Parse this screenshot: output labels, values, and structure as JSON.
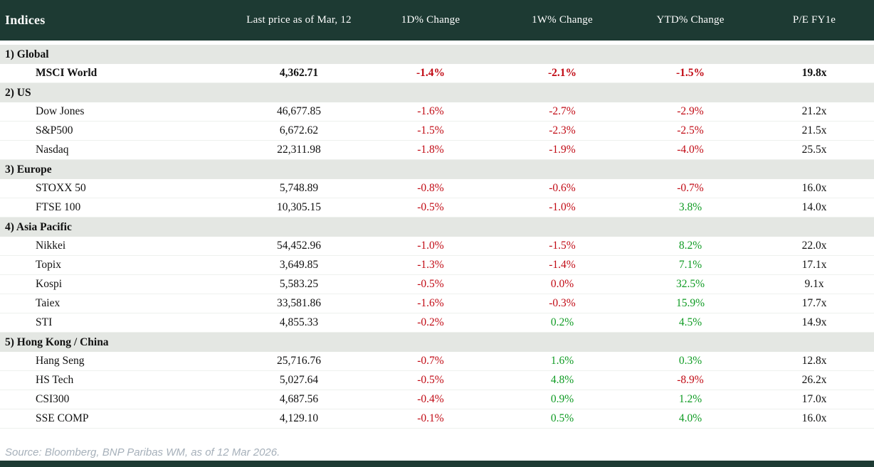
{
  "table": {
    "title": "Indices",
    "columns": [
      "Last price as of Mar, 12",
      "1D% Change",
      "1W% Change",
      "YTD% Change",
      "P/E FY1e"
    ],
    "sections": [
      {
        "label": "1) Global",
        "rows": [
          {
            "name": "MSCI World",
            "price": "4,362.71",
            "d1": "-1.4%",
            "d1_color": "negative",
            "w1": "-2.1%",
            "w1_color": "negative",
            "ytd": "-1.5%",
            "ytd_color": "negative",
            "pe": "19.8x",
            "emphasis": true
          }
        ]
      },
      {
        "label": "2) US",
        "rows": [
          {
            "name": "Dow Jones",
            "price": "46,677.85",
            "d1": "-1.6%",
            "d1_color": "negative",
            "w1": "-2.7%",
            "w1_color": "negative",
            "ytd": "-2.9%",
            "ytd_color": "negative",
            "pe": "21.2x",
            "emphasis": false
          },
          {
            "name": "S&P500",
            "price": "6,672.62",
            "d1": "-1.5%",
            "d1_color": "negative",
            "w1": "-2.3%",
            "w1_color": "negative",
            "ytd": "-2.5%",
            "ytd_color": "negative",
            "pe": "21.5x",
            "emphasis": false
          },
          {
            "name": "Nasdaq",
            "price": "22,311.98",
            "d1": "-1.8%",
            "d1_color": "negative",
            "w1": "-1.9%",
            "w1_color": "negative",
            "ytd": "-4.0%",
            "ytd_color": "negative",
            "pe": "25.5x",
            "emphasis": false
          }
        ]
      },
      {
        "label": "3) Europe",
        "rows": [
          {
            "name": "STOXX 50",
            "price": "5,748.89",
            "d1": "-0.8%",
            "d1_color": "negative",
            "w1": "-0.6%",
            "w1_color": "negative",
            "ytd": "-0.7%",
            "ytd_color": "negative",
            "pe": "16.0x",
            "emphasis": false
          },
          {
            "name": "FTSE 100",
            "price": "10,305.15",
            "d1": "-0.5%",
            "d1_color": "negative",
            "w1": "-1.0%",
            "w1_color": "negative",
            "ytd": "3.8%",
            "ytd_color": "positive",
            "pe": "14.0x",
            "emphasis": false
          }
        ]
      },
      {
        "label": "4) Asia Pacific",
        "rows": [
          {
            "name": "Nikkei",
            "price": "54,452.96",
            "d1": "-1.0%",
            "d1_color": "negative",
            "w1": "-1.5%",
            "w1_color": "negative",
            "ytd": "8.2%",
            "ytd_color": "positive",
            "pe": "22.0x",
            "emphasis": false
          },
          {
            "name": "Topix",
            "price": "3,649.85",
            "d1": "-1.3%",
            "d1_color": "negative",
            "w1": "-1.4%",
            "w1_color": "negative",
            "ytd": "7.1%",
            "ytd_color": "positive",
            "pe": "17.1x",
            "emphasis": false
          },
          {
            "name": "Kospi",
            "price": "5,583.25",
            "d1": "-0.5%",
            "d1_color": "negative",
            "w1": "0.0%",
            "w1_color": "negative",
            "ytd": "32.5%",
            "ytd_color": "positive",
            "pe": "9.1x",
            "emphasis": false
          },
          {
            "name": "Taiex",
            "price": "33,581.86",
            "d1": "-1.6%",
            "d1_color": "negative",
            "w1": "-0.3%",
            "w1_color": "negative",
            "ytd": "15.9%",
            "ytd_color": "positive",
            "pe": "17.7x",
            "emphasis": false
          },
          {
            "name": "STI",
            "price": "4,855.33",
            "d1": "-0.2%",
            "d1_color": "negative",
            "w1": "0.2%",
            "w1_color": "positive",
            "ytd": "4.5%",
            "ytd_color": "positive",
            "pe": "14.9x",
            "emphasis": false
          }
        ]
      },
      {
        "label": "5) Hong Kong / China",
        "rows": [
          {
            "name": "Hang Seng",
            "price": "25,716.76",
            "d1": "-0.7%",
            "d1_color": "negative",
            "w1": "1.6%",
            "w1_color": "positive",
            "ytd": "0.3%",
            "ytd_color": "positive",
            "pe": "12.8x",
            "emphasis": false
          },
          {
            "name": "HS Tech",
            "price": "5,027.64",
            "d1": "-0.5%",
            "d1_color": "negative",
            "w1": "4.8%",
            "w1_color": "positive",
            "ytd": "-8.9%",
            "ytd_color": "negative",
            "pe": "26.2x",
            "emphasis": false
          },
          {
            "name": "CSI300",
            "price": "4,687.56",
            "d1": "-0.4%",
            "d1_color": "negative",
            "w1": "0.9%",
            "w1_color": "positive",
            "ytd": "1.2%",
            "ytd_color": "positive",
            "pe": "17.0x",
            "emphasis": false
          },
          {
            "name": "SSE COMP",
            "price": "4,129.10",
            "d1": "-0.1%",
            "d1_color": "negative",
            "w1": "0.5%",
            "w1_color": "positive",
            "ytd": "4.0%",
            "ytd_color": "positive",
            "pe": "16.0x",
            "emphasis": false
          }
        ]
      }
    ]
  },
  "footer": {
    "source": "Source: Bloomberg, BNP Paribas WM, as of 12 Mar 2026."
  },
  "colors": {
    "header_bg": "#1d3a33",
    "section_bg": "#e4e7e3",
    "negative": "#c10a14",
    "positive": "#0f9b23",
    "text": "#111111",
    "source_text": "#a6b0ba",
    "bottom_bar": "#1d3a33"
  },
  "chart_data": {
    "type": "table",
    "title": "Indices",
    "columns": [
      "Indices",
      "Last price as of Mar, 12",
      "1D% Change",
      "1W% Change",
      "YTD% Change",
      "P/E FY1e"
    ],
    "rows": [
      [
        "1) Global",
        "",
        "",
        "",
        "",
        ""
      ],
      [
        "MSCI World",
        "4,362.71",
        "-1.4%",
        "-2.1%",
        "-1.5%",
        "19.8x"
      ],
      [
        "2) US",
        "",
        "",
        "",
        "",
        ""
      ],
      [
        "Dow Jones",
        "46,677.85",
        "-1.6%",
        "-2.7%",
        "-2.9%",
        "21.2x"
      ],
      [
        "S&P500",
        "6,672.62",
        "-1.5%",
        "-2.3%",
        "-2.5%",
        "21.5x"
      ],
      [
        "Nasdaq",
        "22,311.98",
        "-1.8%",
        "-1.9%",
        "-4.0%",
        "25.5x"
      ],
      [
        "3) Europe",
        "",
        "",
        "",
        "",
        ""
      ],
      [
        "STOXX 50",
        "5,748.89",
        "-0.8%",
        "-0.6%",
        "-0.7%",
        "16.0x"
      ],
      [
        "FTSE 100",
        "10,305.15",
        "-0.5%",
        "-1.0%",
        "3.8%",
        "14.0x"
      ],
      [
        "4) Asia Pacific",
        "",
        "",
        "",
        "",
        ""
      ],
      [
        "Nikkei",
        "54,452.96",
        "-1.0%",
        "-1.5%",
        "8.2%",
        "22.0x"
      ],
      [
        "Topix",
        "3,649.85",
        "-1.3%",
        "-1.4%",
        "7.1%",
        "17.1x"
      ],
      [
        "Kospi",
        "5,583.25",
        "-0.5%",
        "0.0%",
        "32.5%",
        "9.1x"
      ],
      [
        "Taiex",
        "33,581.86",
        "-1.6%",
        "-0.3%",
        "15.9%",
        "17.7x"
      ],
      [
        "STI",
        "4,855.33",
        "-0.2%",
        "0.2%",
        "4.5%",
        "14.9x"
      ],
      [
        "5) Hong Kong / China",
        "",
        "",
        "",
        "",
        ""
      ],
      [
        "Hang Seng",
        "25,716.76",
        "-0.7%",
        "1.6%",
        "0.3%",
        "12.8x"
      ],
      [
        "HS Tech",
        "5,027.64",
        "-0.5%",
        "4.8%",
        "-8.9%",
        "26.2x"
      ],
      [
        "CSI300",
        "4,687.56",
        "-0.4%",
        "0.9%",
        "1.2%",
        "17.0x"
      ],
      [
        "SSE COMP",
        "4,129.10",
        "-0.1%",
        "0.5%",
        "4.0%",
        "16.0x"
      ]
    ]
  }
}
